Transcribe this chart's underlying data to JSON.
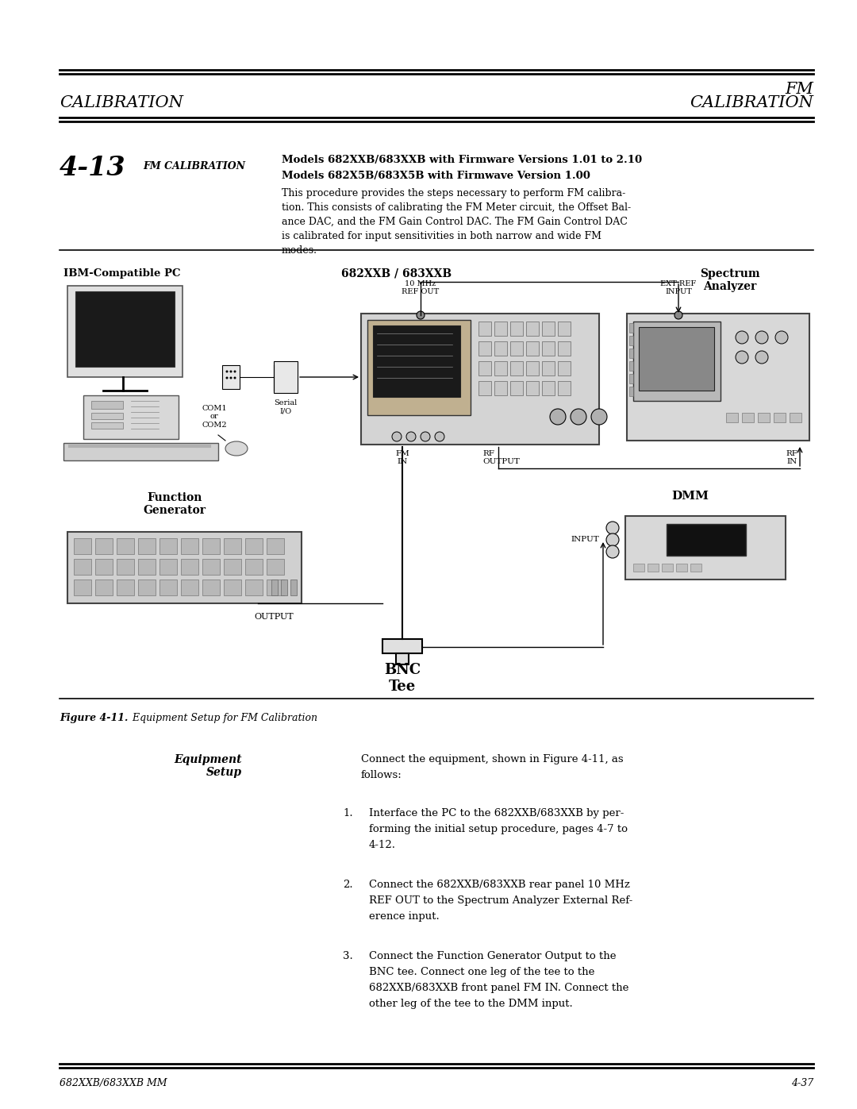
{
  "bg_color": "#ffffff",
  "page_width": 10.8,
  "page_height": 13.97,
  "header_left": "CALIBRATION",
  "header_right_top": "FM",
  "header_right_bottom": "CALIBRATION",
  "section_number": "4-13",
  "section_title": "FM CALIBRATION",
  "body_title_line1": "Models 682XXB/683XXB with Firmware Versions 1.01 to 2.10",
  "body_title_line2": "Models 682X5B/683X5B with Firmwave Version 1.00",
  "body_lines": [
    "This procedure provides the steps necessary to perform FM calibra-",
    "tion. This consists of calibrating the FM Meter circuit, the Offset Bal-",
    "ance DAC, and the FM Gain Control DAC. The FM Gain Control DAC",
    "is calibrated for input sensitivities in both narrow and wide FM",
    "modes."
  ],
  "figure_caption_bold": "Figure 4-11.",
  "figure_caption_rest": "   Equipment Setup for FM Calibration",
  "eq_setup_label": "Equipment\nSetup",
  "eq_setup_text": "Connect the equipment, shown in Figure 4-11, as\nfollows:",
  "step1_lines": [
    "Interface the PC to the 682XXB/683XXB by per-",
    "forming the initial setup procedure, pages 4-7 to",
    "4-12."
  ],
  "step2_lines": [
    "Connect the 682XXB/683XXB rear panel 10 MHz",
    "REF OUT to the Spectrum Analyzer External Ref-",
    "erence input."
  ],
  "step3_lines": [
    "Connect the Function Generator Output to the",
    "BNC tee. Connect one leg of the tee to the",
    "682XXB/683XXB front panel FM IN. Connect the",
    "other leg of the tee to the DMM input."
  ],
  "footer_left": "682XXB/683XXB MM",
  "footer_right": "4-37",
  "lbl_ibm_pc": "IBM-Compatible PC",
  "lbl_model": "682XXB / 683XXB",
  "lbl_spectrum": "Spectrum\nAnalyzer",
  "lbl_func_gen": "Function\nGenerator",
  "lbl_bnc": "BNC\nTee",
  "lbl_dmm": "DMM",
  "lbl_com": "COM1\nor\nCOM2",
  "lbl_serial": "Serial\nI/O",
  "lbl_10mhz": "10 MHz\nREF OUT",
  "lbl_ext_ref": "EXT REF\nINPUT",
  "lbl_fm_in": "FM\nIN",
  "lbl_rf_out": "RF\nOUTPUT",
  "lbl_rf_in": "RF\nIN",
  "lbl_output": "OUTPUT",
  "lbl_input": "INPUT"
}
